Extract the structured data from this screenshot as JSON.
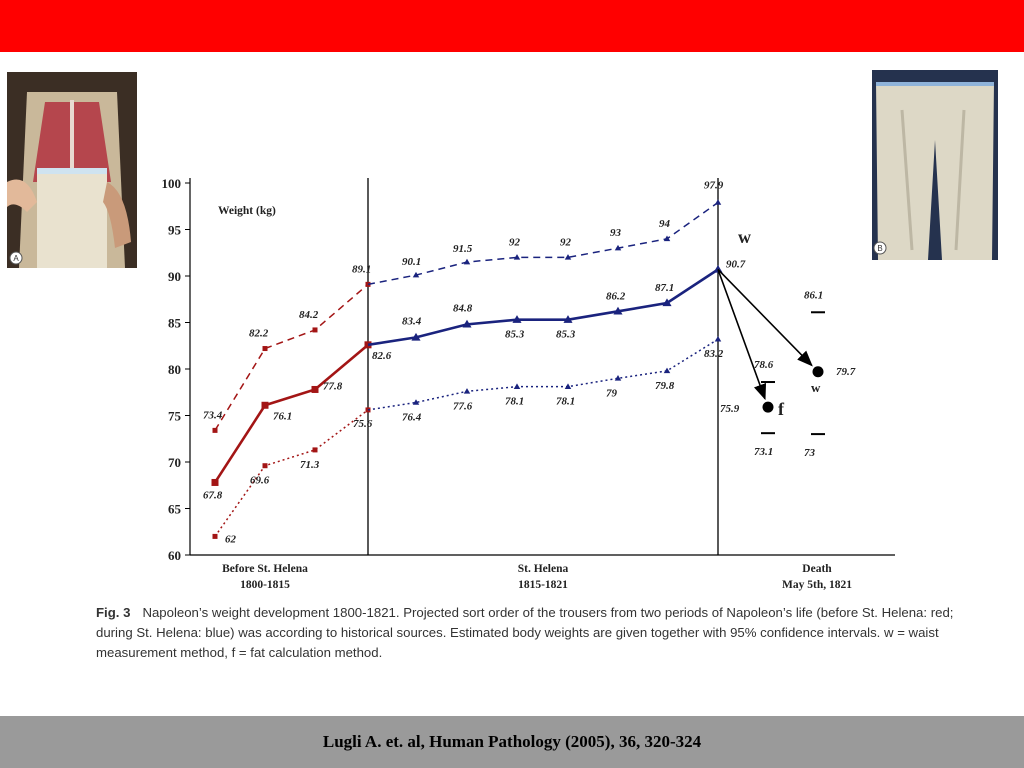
{
  "slide": {
    "citation": "Lugli A. et. al, Human Pathology (2005), 36, 320-324",
    "colors": {
      "top_bar": "#ff0000",
      "bottom_bar": "#9a9a9a"
    }
  },
  "photos": [
    {
      "label": "A",
      "subject": "tailor's dummy with red and white waistcoat, tape measure"
    },
    {
      "label": "B",
      "subject": "white trousers with tape measure"
    }
  ],
  "caption": {
    "fig": "Fig. 3",
    "text": "Napoleon’s weight development 1800-1821. Projected sort order of the trousers from two periods of Napoleon’s life (before St. Helena: red; during St. Helena: blue) was according to historical sources. Estimated body weights are given together with 95% confidence intervals. w = waist measurement method, f = fat calculation method."
  },
  "chart_data": {
    "type": "line",
    "ylabel": "Weight (kg)",
    "ylim": [
      60,
      100
    ],
    "yticks": [
      60,
      65,
      70,
      75,
      80,
      85,
      90,
      95,
      100
    ],
    "period_labels": [
      {
        "line1": "Before St. Helena",
        "line2": "1800-1815"
      },
      {
        "line1": "St. Helena",
        "line2": "1815-1821"
      },
      {
        "line1": "Death",
        "line2": "May 5th, 1821"
      }
    ],
    "colors": {
      "red": "#a31515",
      "blue": "#1a237e"
    },
    "series": [
      {
        "group": "before",
        "role": "estimate",
        "values": [
          67.8,
          76.1,
          77.8,
          82.6
        ],
        "labels": [
          "67.8",
          "76.1",
          "77.8",
          "82.6"
        ]
      },
      {
        "group": "before",
        "role": "upper",
        "values": [
          73.4,
          82.2,
          84.2,
          89.1
        ],
        "labels": [
          "73.4",
          "82.2",
          "84.2",
          "89.1"
        ]
      },
      {
        "group": "before",
        "role": "lower",
        "values": [
          62,
          69.6,
          71.3,
          75.6
        ],
        "labels": [
          "62",
          "69.6",
          "71.3",
          "75.6"
        ]
      },
      {
        "group": "st_helena",
        "role": "estimate",
        "values": [
          82.6,
          83.4,
          84.8,
          85.3,
          85.3,
          86.2,
          87.1,
          90.7
        ],
        "labels": [
          "",
          "83.4",
          "84.8",
          "85.3",
          "85.3",
          "86.2",
          "87.1",
          "90.7"
        ]
      },
      {
        "group": "st_helena",
        "role": "upper",
        "values": [
          89.1,
          90.1,
          91.5,
          92,
          92,
          93,
          94,
          97.9
        ],
        "labels": [
          "",
          "90.1",
          "91.5",
          "92",
          "92",
          "93",
          "94",
          "97.9"
        ]
      },
      {
        "group": "st_helena",
        "role": "lower",
        "values": [
          75.6,
          76.4,
          77.6,
          78.1,
          78.1,
          79,
          79.8,
          83.2
        ],
        "labels": [
          "",
          "76.4",
          "77.6",
          "78.1",
          "78.1",
          "79",
          "79.8",
          "83.2"
        ]
      }
    ],
    "death_estimates": [
      {
        "method": "f",
        "value": 75.9,
        "upper": 78.6,
        "lower": 73.1,
        "value_label": "75.9",
        "upper_label": "78.6",
        "lower_label": "73.1"
      },
      {
        "method": "w",
        "value": 79.7,
        "upper": 86.1,
        "lower": 73,
        "value_label": "79.7",
        "upper_label": "86.1",
        "lower_label": "73"
      }
    ],
    "marker_labels": {
      "upper_w": "w",
      "point_w": "w",
      "point_f": "f"
    }
  }
}
